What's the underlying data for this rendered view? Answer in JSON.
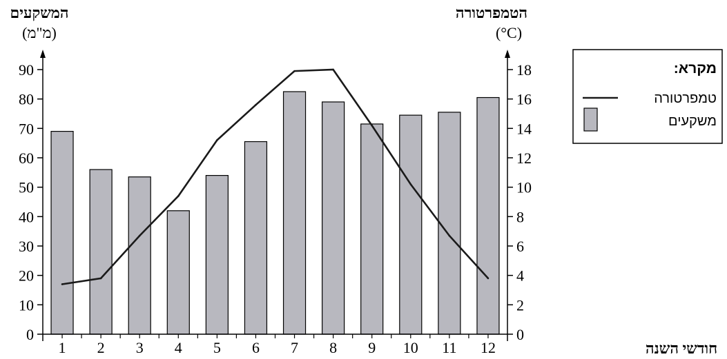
{
  "colors": {
    "bar_fill": "#b8b8bf",
    "bar_stroke": "#000000",
    "line": "#1a1a1a",
    "axis": "#000000"
  },
  "chart_data": {
    "type": "bar",
    "title": "",
    "xlabel": "חודשי השנה",
    "ylabel_left": "המשקעים",
    "ylabel_left_unit": "(מ\"מ)",
    "ylabel_right": "הטמפרטורה",
    "ylabel_right_unit": "(°C)",
    "categories": [
      "1",
      "2",
      "3",
      "4",
      "5",
      "6",
      "7",
      "8",
      "9",
      "10",
      "11",
      "12"
    ],
    "left_axis": {
      "ylim": [
        0,
        90
      ],
      "ticks": [
        "0",
        "10",
        "20",
        "30",
        "40",
        "50",
        "60",
        "70",
        "80",
        "90"
      ]
    },
    "right_axis": {
      "ylim": [
        0,
        18
      ],
      "ticks": [
        "0",
        "2",
        "4",
        "6",
        "8",
        "10",
        "12",
        "14",
        "16",
        "18"
      ]
    },
    "series": [
      {
        "name": "משקעים",
        "type": "bar",
        "axis": "left",
        "values": [
          69,
          56,
          53.5,
          42,
          54,
          65.5,
          82.5,
          79,
          71.5,
          74.5,
          75.5,
          80.5
        ]
      },
      {
        "name": "טמפרטורה",
        "type": "line",
        "axis": "right",
        "values": [
          3.4,
          3.8,
          6.7,
          9.4,
          13.2,
          15.6,
          17.9,
          18,
          14.2,
          10.2,
          6.7,
          3.8
        ]
      }
    ],
    "legend": {
      "title": "מקרא:",
      "placement": "top-right"
    },
    "grid": false
  }
}
